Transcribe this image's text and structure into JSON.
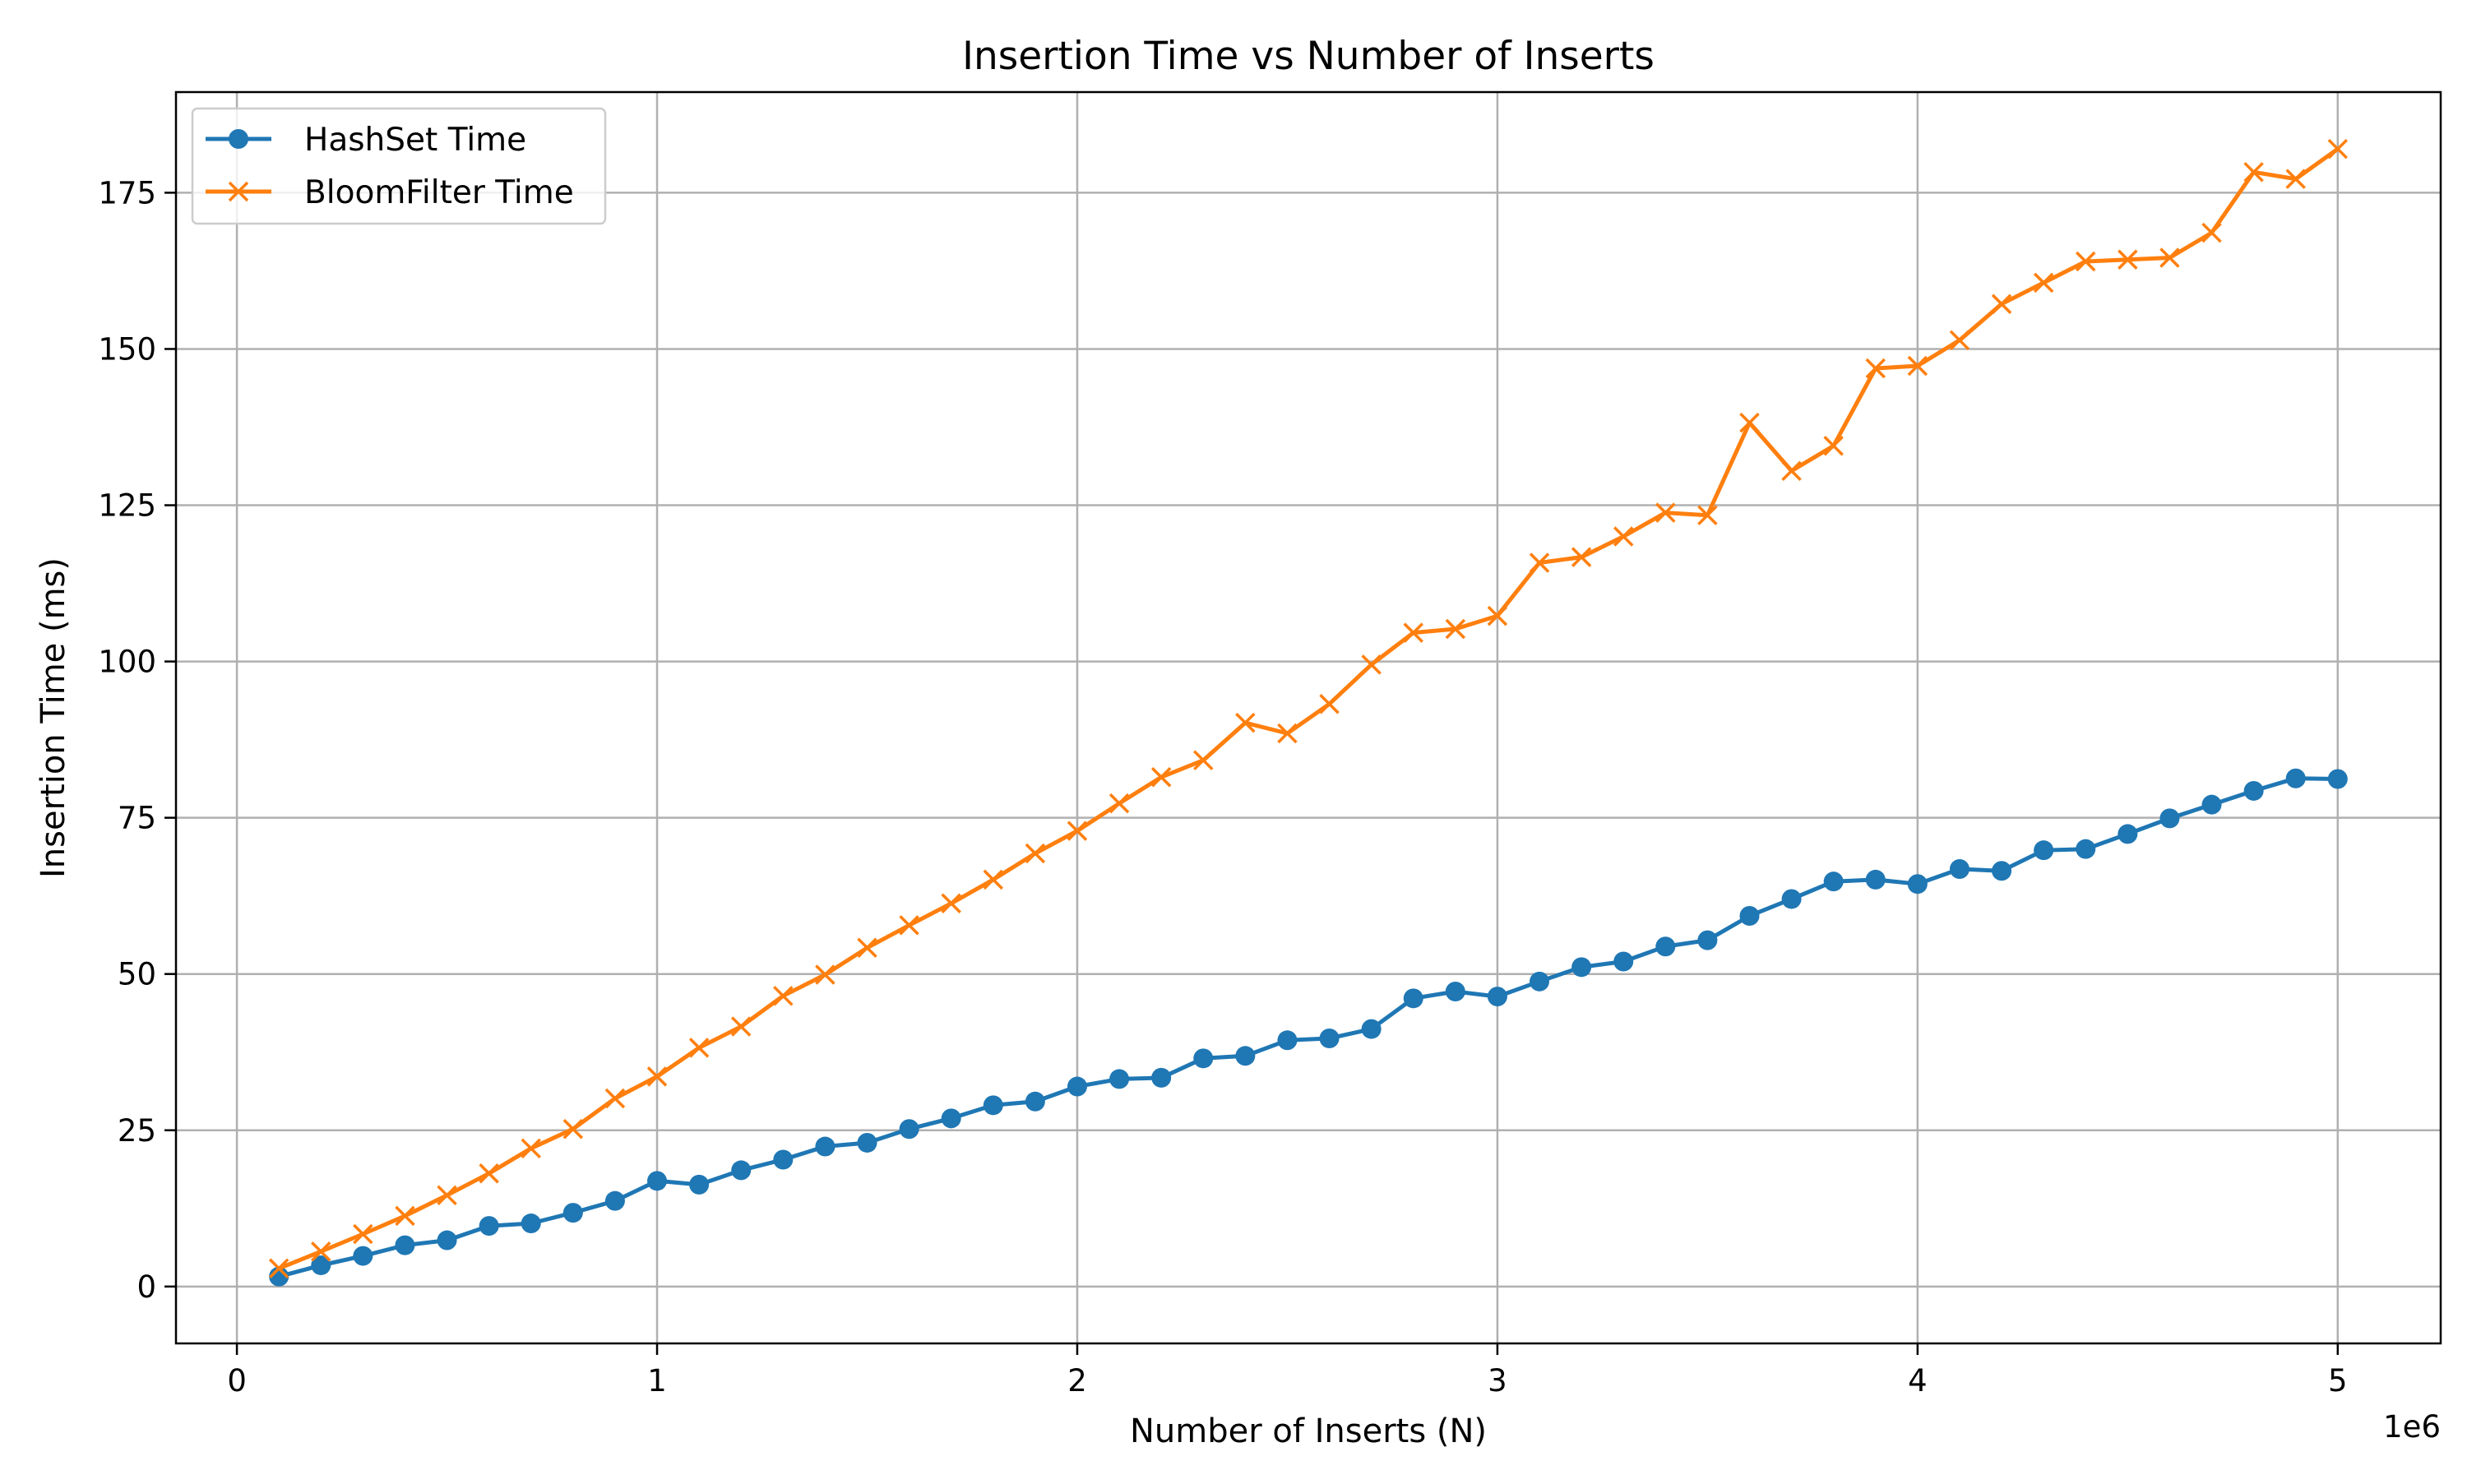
{
  "chart_data": {
    "type": "line",
    "title": "Insertion Time vs Number of Inserts",
    "xlabel": "Number of Inserts (N)",
    "ylabel": "Insertion Time (ms)",
    "x_offset_text": "1e6",
    "xlim": [
      -0.145,
      5.245
    ],
    "ylim": [
      -9.1,
      191.1
    ],
    "xticks": [
      0,
      1,
      2,
      3,
      4,
      5
    ],
    "xtick_labels": [
      "0",
      "1",
      "2",
      "3",
      "4",
      "5"
    ],
    "yticks": [
      0,
      25,
      50,
      75,
      100,
      125,
      150,
      175
    ],
    "ytick_labels": [
      "0",
      "25",
      "50",
      "75",
      "100",
      "125",
      "150",
      "175"
    ],
    "grid": true,
    "legend_position": "upper-left",
    "x": [
      0.1,
      0.2,
      0.3,
      0.4,
      0.5,
      0.6,
      0.7,
      0.8,
      0.9,
      1.0,
      1.1,
      1.2,
      1.3,
      1.4,
      1.5,
      1.6,
      1.7,
      1.8,
      1.9,
      2.0,
      2.1,
      2.2,
      2.3,
      2.4,
      2.5,
      2.6,
      2.7,
      2.8,
      2.9,
      3.0,
      3.1,
      3.2,
      3.3,
      3.4,
      3.5,
      3.6,
      3.7,
      3.8,
      3.9,
      4.0,
      4.1,
      4.2,
      4.3,
      4.4,
      4.5,
      4.6,
      4.7,
      4.8,
      4.9,
      5.0
    ],
    "series": [
      {
        "name": "HashSet Time",
        "color": "#1f77b4",
        "marker": "circle",
        "values": [
          1.6,
          3.4,
          4.9,
          6.6,
          7.4,
          9.7,
          10.1,
          11.8,
          13.7,
          16.9,
          16.3,
          18.6,
          20.3,
          22.4,
          23.0,
          25.2,
          26.9,
          29.0,
          29.6,
          32.0,
          33.2,
          33.4,
          36.5,
          36.9,
          39.4,
          39.7,
          41.2,
          46.1,
          47.2,
          46.4,
          48.8,
          51.1,
          52.0,
          54.4,
          55.4,
          59.3,
          62.0,
          64.8,
          65.1,
          64.4,
          66.8,
          66.5,
          69.8,
          70.0,
          72.4,
          74.9,
          77.1,
          79.3,
          81.3,
          81.2
        ]
      },
      {
        "name": "BloomFilter Time",
        "color": "#ff7f0e",
        "marker": "x",
        "values": [
          2.9,
          5.6,
          8.4,
          11.3,
          14.6,
          18.1,
          22.1,
          25.2,
          30.1,
          33.6,
          38.2,
          41.6,
          46.5,
          49.9,
          54.2,
          57.8,
          61.3,
          65.1,
          69.3,
          72.9,
          77.3,
          81.5,
          84.2,
          90.2,
          88.5,
          93.2,
          99.5,
          104.6,
          105.2,
          107.3,
          115.8,
          116.7,
          120.0,
          123.8,
          123.4,
          138.2,
          130.5,
          134.5,
          146.9,
          147.3,
          151.4,
          157.2,
          160.6,
          164.0,
          164.3,
          164.6,
          168.6,
          178.3,
          177.2,
          182.0
        ]
      }
    ]
  }
}
